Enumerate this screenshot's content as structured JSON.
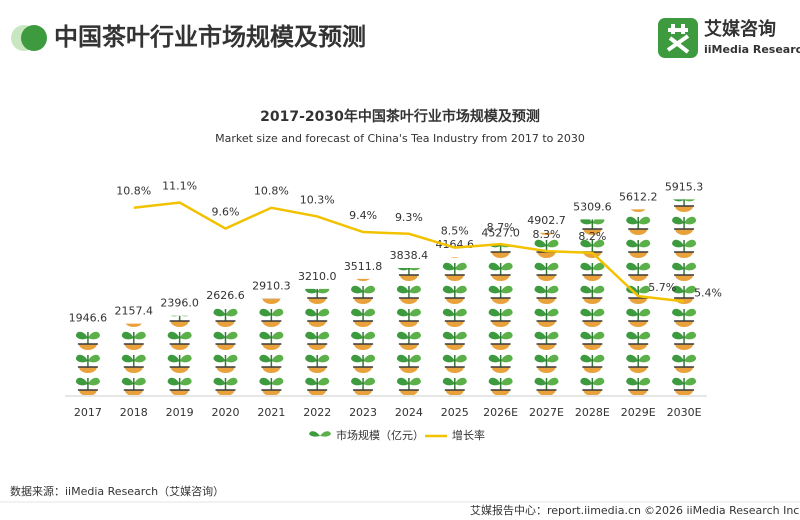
{
  "header": {
    "title": "中国茶叶行业市场规模及预测",
    "logo_cn": "艾媒咨询",
    "logo_en": "iiMedia Research"
  },
  "chart_data": {
    "type": "pictograph-line",
    "title": "2017-2030年中国茶叶行业市场规模及预测",
    "subtitle": "Market size and forecast of China's Tea Industry from 2017 to 2030",
    "categories": [
      "2017",
      "2018",
      "2019",
      "2020",
      "2021",
      "2022",
      "2023",
      "2024",
      "2025",
      "2026E",
      "2027E",
      "2028E",
      "2029E",
      "2030E"
    ],
    "series": [
      {
        "name": "市场规模（亿元）",
        "type": "pictograph",
        "color": "#3d9a3f",
        "values": [
          1946.6,
          2157.4,
          2396.0,
          2626.6,
          2910.3,
          3210.0,
          3511.8,
          3838.4,
          4164.6,
          4527.0,
          4902.7,
          5309.6,
          5612.2,
          5915.3
        ],
        "value_labels": [
          "1946.6",
          "2157.4",
          "2396.0",
          "2626.6",
          "2910.3",
          "3210.0",
          "3511.8",
          "3838.4",
          "4164.6",
          "4527.0",
          "4902.7",
          "5309.6",
          "5612.2",
          "5915.3"
        ]
      },
      {
        "name": "增长率",
        "type": "line",
        "axis": "y2",
        "color": "#f2c200",
        "values": [
          null,
          10.8,
          11.1,
          9.6,
          10.8,
          10.3,
          9.4,
          9.3,
          8.5,
          8.7,
          8.3,
          8.2,
          5.7,
          5.4
        ],
        "value_labels": [
          null,
          "10.8%",
          "11.1%",
          "9.6%",
          "10.8%",
          "10.3%",
          "9.4%",
          "9.3%",
          "8.5%",
          "8.7%",
          "8.3%",
          "8.2%",
          "5.7%",
          "5.4%"
        ]
      }
    ],
    "ylim": [
      0,
      6500
    ],
    "y2lim": [
      0,
      12.4
    ],
    "legend": "bottom"
  },
  "footer": {
    "source": "数据来源：iiMedia Research（艾媒咨询）",
    "report_center": "艾媒报告中心：report.iimedia.cn",
    "copyright": "©2026  iiMedia Research  Inc"
  }
}
